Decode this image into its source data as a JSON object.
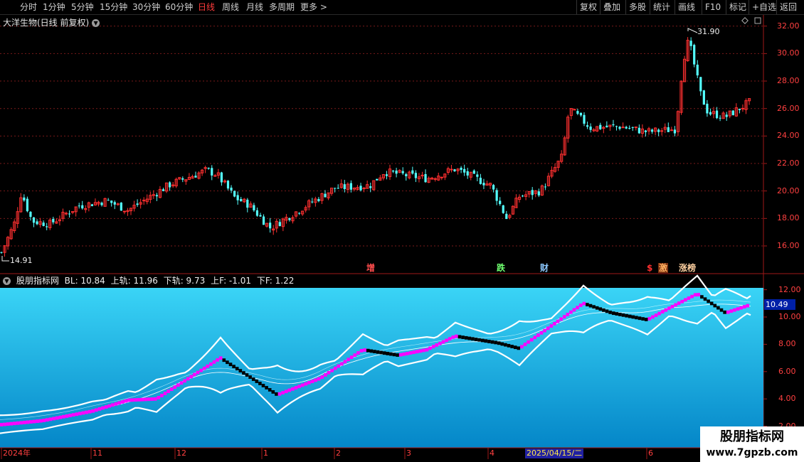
{
  "toolbar": {
    "periods": [
      "分时",
      "1分钟",
      "5分钟",
      "15分钟",
      "30分钟",
      "60分钟",
      "日线",
      "周线",
      "月线",
      "多周期",
      "更多 >"
    ],
    "active_period": "日线",
    "actions": [
      "复权",
      "叠加",
      "多股",
      "统计",
      "画线",
      "F10",
      "标记",
      "+自选",
      "返回"
    ]
  },
  "price_chart": {
    "title": "大洋生物(日线 前复权)",
    "axis_labels": [
      "32.00",
      "30.00",
      "28.00",
      "26.00",
      "24.00",
      "22.00",
      "20.00",
      "18.00",
      "16.00"
    ],
    "axis_values": [
      32,
      30,
      28,
      26,
      24,
      22,
      20,
      18,
      16
    ],
    "max_label": "31.90",
    "min_label": "14.91",
    "events": [
      {
        "text": "增",
        "color": "#ff4d4d"
      },
      {
        "text": "跌",
        "color": "#6fff6f"
      },
      {
        "text": "财",
        "color": "#8cc8ff"
      },
      {
        "text": "$",
        "color": "#ff3030"
      },
      {
        "text": "激",
        "color": "#ffb060"
      },
      {
        "text": "涨榜",
        "color": "#ffd0a0"
      }
    ]
  },
  "indicator": {
    "name": "股朋指标网",
    "bl_label": "BL: 10.84",
    "upper_label": "上轨: 11.96",
    "lower_label": "下轨: 9.73",
    "uf_label": "上F: -1.01",
    "df_label": "下F: 1.22",
    "axis_labels": [
      "12.00",
      "10.00",
      "8.00",
      "6.00",
      "4.00",
      "2.00"
    ],
    "axis_values": [
      12,
      10,
      8,
      6,
      4,
      2
    ],
    "current_value": "10.49"
  },
  "date_axis": {
    "labels": [
      "2024年",
      "11",
      "12",
      "1",
      "2",
      "3",
      "4",
      "6"
    ],
    "highlight": "2025/04/15/二"
  },
  "watermark": {
    "title": "股朋指标网",
    "url": "www.7gpzb.com"
  },
  "colors": {
    "up": "#ff3030",
    "down": "#54ffff",
    "grid": "#7a1a1a",
    "indicator_bg_top": "#3ad4f6",
    "indicator_bg_bottom": "#0486c8",
    "step_up": "#ff00ff",
    "step_down": "#000000"
  }
}
